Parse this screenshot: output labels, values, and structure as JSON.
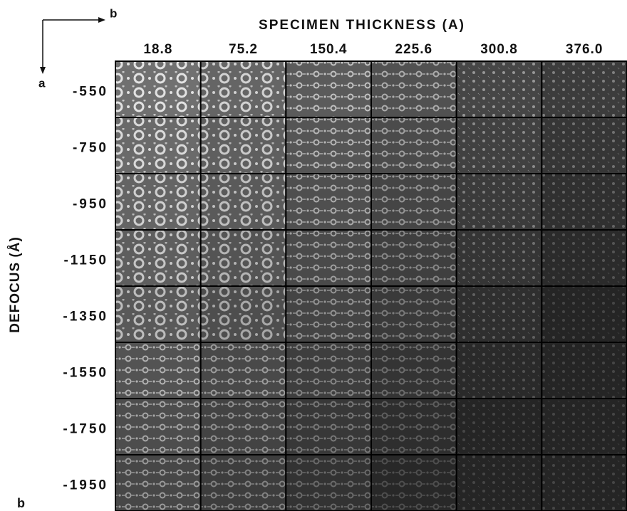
{
  "axes_diagram": {
    "horizontal_label": "b",
    "vertical_label": "a"
  },
  "title": "SPECIMEN THICKNESS (A)",
  "y_axis_label": "DEFOCUS (Å)",
  "columns": [
    "18.8",
    "75.2",
    "150.4",
    "225.6",
    "300.8",
    "376.0"
  ],
  "rows": [
    "-550",
    "-750",
    "-950",
    "-1150",
    "-1350",
    "-1550",
    "-1750",
    "-1950"
  ],
  "panel_label": "b"
}
